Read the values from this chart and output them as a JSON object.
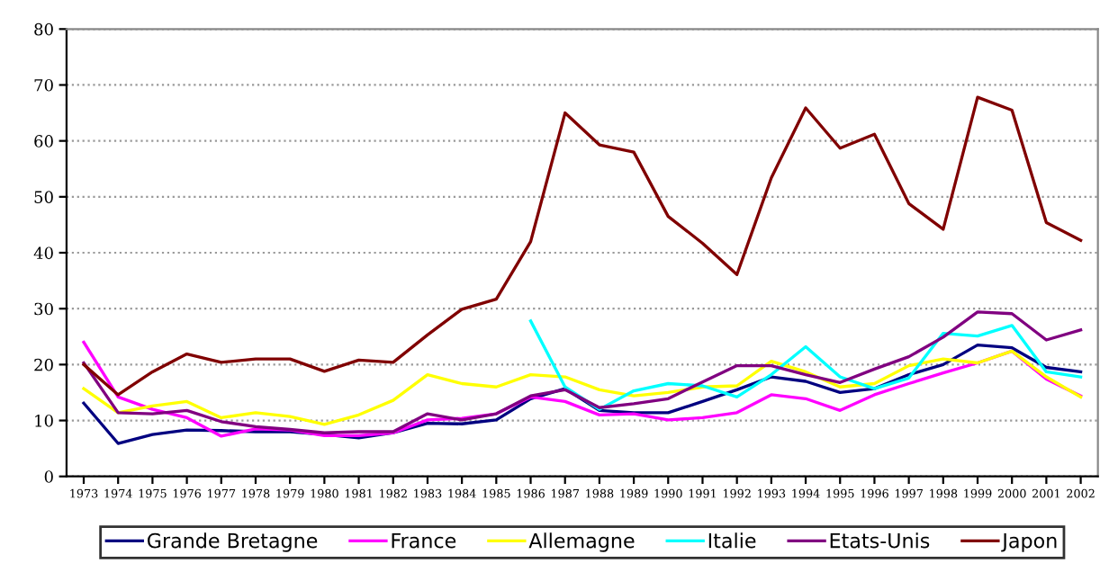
{
  "chart_data": {
    "type": "line",
    "categories": [
      "1973",
      "1974",
      "1975",
      "1976",
      "1977",
      "1978",
      "1979",
      "1980",
      "1981",
      "1982",
      "1983",
      "1984",
      "1985",
      "1986",
      "1987",
      "1988",
      "1989",
      "1990",
      "1991",
      "1992",
      "1993",
      "1994",
      "1995",
      "1996",
      "1997",
      "1998",
      "1999",
      "2000",
      "2001",
      "2002"
    ],
    "ylim": [
      0,
      80
    ],
    "yticks": [
      0,
      10,
      20,
      30,
      40,
      50,
      60,
      70,
      80
    ],
    "grid": "y",
    "legend": "bottom",
    "marker": "none",
    "line_style": "solid",
    "series": [
      {
        "name": "Grande Bretagne",
        "color": "#000080",
        "values": [
          13.1,
          5.9,
          7.5,
          8.3,
          8.2,
          8,
          8,
          7.5,
          6.9,
          7.8,
          9.5,
          9.4,
          10.1,
          13.9,
          15.7,
          11.8,
          11.4,
          11.4,
          13.4,
          15.5,
          17.8,
          17,
          15,
          15.7,
          18.2,
          20,
          23.5,
          23,
          19.5,
          18.7
        ]
      },
      {
        "name": "France",
        "color": "#ff00ff",
        "values": [
          24,
          14.2,
          12,
          10.5,
          7.2,
          8.5,
          8.3,
          7.3,
          7.3,
          7.8,
          10.1,
          10.4,
          11.2,
          14.2,
          13.4,
          11,
          11.2,
          10.1,
          10.5,
          11.4,
          14.6,
          13.9,
          11.8,
          14.6,
          16.6,
          18.5,
          20.3,
          22.4,
          17.4,
          14.4
        ]
      },
      {
        "name": "Allemagne",
        "color": "#ffff00",
        "values": [
          15.7,
          11.4,
          12.6,
          13.4,
          10.5,
          11.4,
          10.7,
          9.3,
          11,
          13.6,
          18.2,
          16.6,
          16,
          18.2,
          17.8,
          15.5,
          14.4,
          15,
          16,
          16.2,
          20.6,
          18.7,
          16,
          16.6,
          19.8,
          21,
          20.3,
          22.4,
          17.8,
          14.2
        ]
      },
      {
        "name": "Italie",
        "color": "#00ffff",
        "values": [
          null,
          null,
          null,
          null,
          null,
          null,
          null,
          null,
          null,
          null,
          null,
          null,
          null,
          27.8,
          16,
          12,
          15.3,
          16.6,
          16.2,
          14.2,
          18.2,
          23.2,
          17.8,
          15.7,
          17.6,
          25.6,
          25.1,
          27,
          18.7,
          17.8
        ]
      },
      {
        "name": "Etats-Unis",
        "color": "#800080",
        "values": [
          20.3,
          11.4,
          11.2,
          11.8,
          9.8,
          8.9,
          8.4,
          7.8,
          8,
          8,
          11.2,
          10.1,
          11.2,
          14.4,
          15.5,
          12.3,
          13,
          13.9,
          16.9,
          19.8,
          19.8,
          18.2,
          16.8,
          19.2,
          21.4,
          24.9,
          29.4,
          29.1,
          24.4,
          26.2
        ]
      },
      {
        "name": "Japon",
        "color": "#800000",
        "values": [
          20,
          14.6,
          18.7,
          21.9,
          20.4,
          21,
          21,
          18.8,
          20.8,
          20.4,
          25.3,
          29.9,
          31.7,
          42,
          65,
          59.3,
          58,
          46.5,
          41.7,
          36.1,
          53.4,
          65.9,
          58.7,
          61.2,
          48.8,
          44.2,
          67.8,
          65.5,
          45.4,
          42.2
        ]
      }
    ]
  }
}
